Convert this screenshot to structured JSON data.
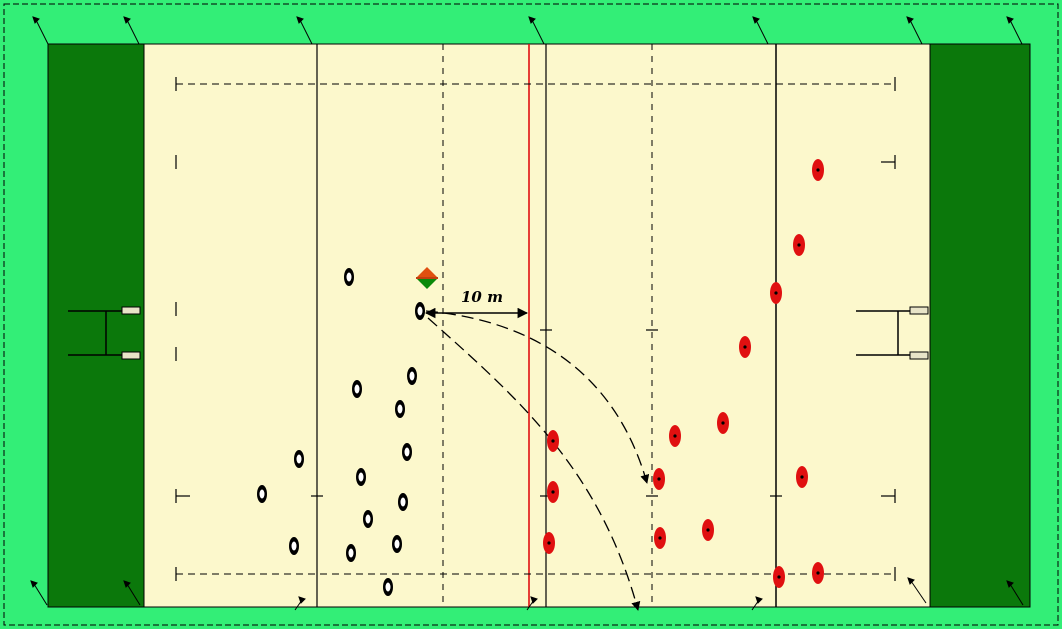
{
  "colors": {
    "surround": "#33ee77",
    "in_goal": "#0b780b",
    "field": "#fcf8cc",
    "line": "#000000",
    "offside_line": "#e01010",
    "team_a": "#000000",
    "team_b": "#e01010",
    "referee_top": "#e05010",
    "referee_bottom": "#0a8a0a",
    "goal_post": "#e8e4c8"
  },
  "icons": {
    "player_a": "black-ring-player-icon",
    "player_b": "red-ring-player-icon",
    "referee": "diamond-referee-icon",
    "corner_flag": "flag-icon",
    "goal_posts": "goal-posts-icon"
  },
  "annotation": {
    "distance_label": "10 m"
  }
}
